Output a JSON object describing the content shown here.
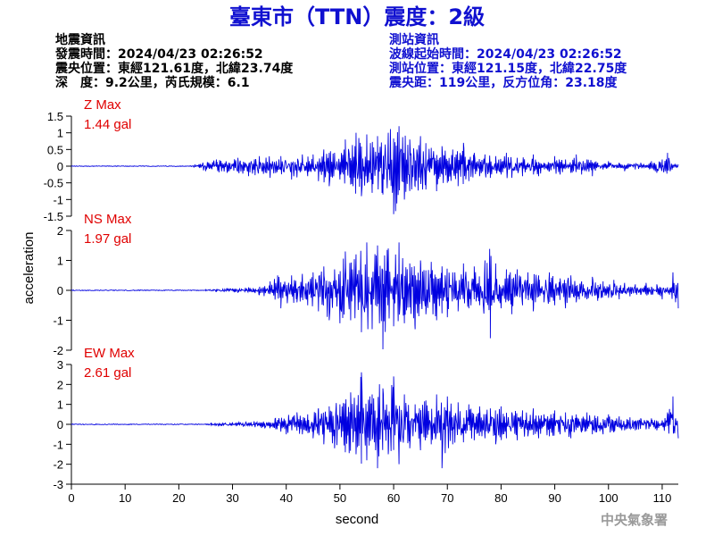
{
  "title": "臺東市（TTN）震度：2級",
  "quake_info": {
    "heading": "地震資訊",
    "origin_time": "發震時間：2024/04/23 02:26:52",
    "epicenter": "震央位置：東經121.61度，北緯23.74度",
    "depth_magnitude": "深　度：9.2公里，芮氏規模：6.1"
  },
  "station_info": {
    "heading": "測站資訊",
    "wave_start": "波線起始時間：2024/04/23 02:26:52",
    "location": "測站位置：東經121.15度，北緯22.75度",
    "distance": "震央距：119公里，反方位角：23.18度"
  },
  "credit": "中央氣象署",
  "colors": {
    "title": "#1010d0",
    "trace": "#0000e0",
    "max_label": "#e00000",
    "info_left": "#000000",
    "info_right": "#1010d0",
    "credit": "#9a9a9a"
  },
  "chart_data": {
    "type": "line",
    "xlabel": "second",
    "ylabel": "acceleration",
    "xlim": [
      0,
      113
    ],
    "xticks": [
      0,
      10,
      20,
      30,
      40,
      50,
      60,
      70,
      80,
      90,
      100,
      110
    ],
    "panels": [
      {
        "component": "Z",
        "max_label": "Z Max",
        "max_value": "1.44 gal",
        "ylim": [
          -1.5,
          1.5
        ],
        "yticks": [
          1.5,
          1,
          0.5,
          0,
          -0.5,
          -1,
          -1.5
        ],
        "ytick_labels": [
          "1.5",
          "1",
          "0.5",
          "0",
          "-0.5",
          "-1",
          "-1.5"
        ],
        "series": [
          [
            0,
            0
          ],
          [
            22,
            0
          ],
          [
            23,
            0.05
          ],
          [
            25,
            -0.15
          ],
          [
            27,
            0.2
          ],
          [
            29,
            -0.2
          ],
          [
            31,
            0.25
          ],
          [
            33,
            -0.3
          ],
          [
            35,
            0.3
          ],
          [
            37,
            -0.35
          ],
          [
            39,
            0.3
          ],
          [
            41,
            -0.4
          ],
          [
            43,
            0.35
          ],
          [
            44,
            -0.3
          ],
          [
            45,
            0.35
          ],
          [
            46,
            -0.45
          ],
          [
            47,
            0.5
          ],
          [
            48,
            -0.6
          ],
          [
            49,
            0.4
          ],
          [
            50,
            -0.4
          ],
          [
            51,
            0.8
          ],
          [
            52,
            -0.55
          ],
          [
            53,
            1.0
          ],
          [
            54,
            -0.9
          ],
          [
            55,
            0.95
          ],
          [
            56,
            -0.8
          ],
          [
            57,
            0.9
          ],
          [
            58,
            -0.85
          ],
          [
            59,
            1.0
          ],
          [
            60,
            -1.44
          ],
          [
            61,
            1.2
          ],
          [
            62,
            -1.0
          ],
          [
            63,
            0.8
          ],
          [
            64,
            -0.6
          ],
          [
            65,
            0.9
          ],
          [
            66,
            -0.7
          ],
          [
            67,
            0.55
          ],
          [
            68,
            -0.75
          ],
          [
            69,
            0.6
          ],
          [
            70,
            -0.5
          ],
          [
            71,
            0.5
          ],
          [
            72,
            -0.6
          ],
          [
            73,
            0.7
          ],
          [
            74,
            -0.45
          ],
          [
            75,
            0.4
          ],
          [
            76,
            -0.3
          ],
          [
            77,
            0.35
          ],
          [
            78,
            -0.35
          ],
          [
            79,
            0.3
          ],
          [
            80,
            -0.25
          ],
          [
            81,
            0.4
          ],
          [
            82,
            -0.35
          ],
          [
            83,
            0.25
          ],
          [
            84,
            -0.3
          ],
          [
            85,
            0.1
          ],
          [
            86,
            0.35
          ],
          [
            87,
            -0.3
          ],
          [
            88,
            0.1
          ],
          [
            89,
            -0.15
          ],
          [
            90,
            0.3
          ],
          [
            91,
            -0.25
          ],
          [
            92,
            0.2
          ],
          [
            93,
            -0.2
          ],
          [
            94,
            0.35
          ],
          [
            95,
            -0.25
          ],
          [
            96,
            0.2
          ],
          [
            97,
            -0.3
          ],
          [
            98,
            0.1
          ],
          [
            99,
            -0.1
          ],
          [
            100,
            0.15
          ],
          [
            101,
            -0.05
          ],
          [
            102,
            0.1
          ],
          [
            103,
            -0.15
          ],
          [
            104,
            0.05
          ],
          [
            105,
            -0.1
          ],
          [
            106,
            0.1
          ],
          [
            107,
            -0.05
          ],
          [
            108,
            0.15
          ],
          [
            109,
            -0.2
          ],
          [
            110,
            0.2
          ],
          [
            111,
            0.4
          ],
          [
            112,
            -0.05
          ],
          [
            113,
            0.05
          ]
        ]
      },
      {
        "component": "NS",
        "max_label": "NS Max",
        "max_value": "1.97 gal",
        "ylim": [
          -2,
          2
        ],
        "yticks": [
          2,
          1,
          0,
          -1,
          -2
        ],
        "ytick_labels": [
          "2",
          "1",
          "0",
          "-1",
          "-2"
        ],
        "series": [
          [
            0,
            0
          ],
          [
            24,
            0
          ],
          [
            25,
            0.02
          ],
          [
            27,
            -0.04
          ],
          [
            29,
            0.06
          ],
          [
            31,
            -0.08
          ],
          [
            33,
            0.1
          ],
          [
            35,
            -0.15
          ],
          [
            37,
            0.3
          ],
          [
            39,
            -0.6
          ],
          [
            41,
            0.5
          ],
          [
            42,
            -0.4
          ],
          [
            43,
            0.55
          ],
          [
            44,
            -0.5
          ],
          [
            45,
            0.6
          ],
          [
            46,
            -0.7
          ],
          [
            47,
            0.8
          ],
          [
            48,
            -1.0
          ],
          [
            49,
            0.7
          ],
          [
            50,
            -1.1
          ],
          [
            51,
            1.3
          ],
          [
            52,
            -1.0
          ],
          [
            53,
            1.2
          ],
          [
            54,
            -1.4
          ],
          [
            55,
            1.6
          ],
          [
            56,
            -1.3
          ],
          [
            57,
            1.5
          ],
          [
            58,
            -1.97
          ],
          [
            59,
            1.4
          ],
          [
            60,
            -1.2
          ],
          [
            61,
            1.6
          ],
          [
            62,
            -1.1
          ],
          [
            63,
            0.9
          ],
          [
            64,
            -1.3
          ],
          [
            65,
            1.0
          ],
          [
            66,
            -0.8
          ],
          [
            67,
            0.95
          ],
          [
            68,
            -1.0
          ],
          [
            69,
            0.8
          ],
          [
            70,
            -0.9
          ],
          [
            71,
            0.6
          ],
          [
            72,
            -0.7
          ],
          [
            73,
            0.9
          ],
          [
            74,
            -0.6
          ],
          [
            75,
            0.8
          ],
          [
            76,
            -0.5
          ],
          [
            77,
            1.0
          ],
          [
            78,
            -1.6
          ],
          [
            79,
            0.9
          ],
          [
            80,
            -0.6
          ],
          [
            81,
            0.7
          ],
          [
            82,
            -0.8
          ],
          [
            83,
            0.7
          ],
          [
            84,
            -0.5
          ],
          [
            85,
            0.6
          ],
          [
            86,
            -0.7
          ],
          [
            87,
            0.5
          ],
          [
            88,
            -0.4
          ],
          [
            89,
            0.6
          ],
          [
            90,
            -0.5
          ],
          [
            91,
            0.4
          ],
          [
            92,
            -0.6
          ],
          [
            93,
            0.5
          ],
          [
            94,
            -0.4
          ],
          [
            95,
            0.3
          ],
          [
            96,
            -0.3
          ],
          [
            97,
            0.45
          ],
          [
            98,
            -0.35
          ],
          [
            99,
            0.3
          ],
          [
            100,
            -0.25
          ],
          [
            101,
            0.35
          ],
          [
            102,
            -0.3
          ],
          [
            103,
            0.25
          ],
          [
            104,
            -0.2
          ],
          [
            105,
            0.2
          ],
          [
            106,
            -0.15
          ],
          [
            107,
            0.25
          ],
          [
            108,
            -0.15
          ],
          [
            109,
            0.2
          ],
          [
            110,
            -0.3
          ],
          [
            111,
            0.1
          ],
          [
            112,
            0.6
          ],
          [
            112.5,
            -0.4
          ],
          [
            113,
            -0.6
          ]
        ]
      },
      {
        "component": "EW",
        "max_label": "EW Max",
        "max_value": "2.61 gal",
        "ylim": [
          -3,
          3
        ],
        "yticks": [
          3,
          2,
          1,
          0,
          -1,
          -2,
          -3
        ],
        "ytick_labels": [
          "3",
          "2",
          "1",
          "0",
          "-1",
          "-2",
          "-3"
        ],
        "series": [
          [
            0,
            0
          ],
          [
            24,
            0
          ],
          [
            26,
            0.05
          ],
          [
            28,
            -0.08
          ],
          [
            30,
            0.1
          ],
          [
            32,
            -0.12
          ],
          [
            34,
            0.15
          ],
          [
            36,
            -0.2
          ],
          [
            38,
            0.3
          ],
          [
            40,
            -0.5
          ],
          [
            42,
            0.6
          ],
          [
            43,
            -0.5
          ],
          [
            44,
            0.5
          ],
          [
            45,
            -0.7
          ],
          [
            46,
            0.8
          ],
          [
            47,
            -1.0
          ],
          [
            48,
            0.9
          ],
          [
            49,
            -1.2
          ],
          [
            50,
            1.0
          ],
          [
            51,
            -1.4
          ],
          [
            52,
            1.6
          ],
          [
            53,
            -1.5
          ],
          [
            54,
            2.61
          ],
          [
            55,
            -1.8
          ],
          [
            56,
            1.5
          ],
          [
            57,
            -2.2
          ],
          [
            58,
            1.8
          ],
          [
            59,
            -1.5
          ],
          [
            60,
            2.4
          ],
          [
            61,
            -2.0
          ],
          [
            62,
            1.5
          ],
          [
            63,
            -1.2
          ],
          [
            64,
            1.0
          ],
          [
            65,
            -1.3
          ],
          [
            66,
            1.2
          ],
          [
            67,
            -1.0
          ],
          [
            68,
            1.5
          ],
          [
            69,
            -2.2
          ],
          [
            70,
            1.4
          ],
          [
            71,
            -1.0
          ],
          [
            72,
            1.1
          ],
          [
            73,
            -0.9
          ],
          [
            74,
            1.0
          ],
          [
            75,
            -0.8
          ],
          [
            76,
            0.9
          ],
          [
            77,
            -0.7
          ],
          [
            78,
            0.8
          ],
          [
            79,
            -1.0
          ],
          [
            80,
            0.9
          ],
          [
            81,
            -0.7
          ],
          [
            82,
            0.6
          ],
          [
            83,
            -0.8
          ],
          [
            84,
            0.7
          ],
          [
            85,
            -0.6
          ],
          [
            86,
            0.8
          ],
          [
            87,
            -0.7
          ],
          [
            88,
            0.5
          ],
          [
            89,
            -0.6
          ],
          [
            90,
            0.7
          ],
          [
            91,
            -0.5
          ],
          [
            92,
            0.6
          ],
          [
            93,
            -0.7
          ],
          [
            94,
            0.5
          ],
          [
            95,
            -0.4
          ],
          [
            96,
            0.6
          ],
          [
            97,
            -0.5
          ],
          [
            98,
            0.4
          ],
          [
            99,
            -0.5
          ],
          [
            100,
            0.5
          ],
          [
            101,
            -0.4
          ],
          [
            102,
            0.4
          ],
          [
            103,
            -0.3
          ],
          [
            104,
            0.35
          ],
          [
            105,
            -0.3
          ],
          [
            106,
            0.3
          ],
          [
            107,
            -0.25
          ],
          [
            108,
            0.3
          ],
          [
            109,
            -0.3
          ],
          [
            110,
            0.2
          ],
          [
            111,
            0.6
          ],
          [
            112,
            1.4
          ],
          [
            112.5,
            0.3
          ],
          [
            113,
            -0.7
          ]
        ]
      }
    ]
  }
}
